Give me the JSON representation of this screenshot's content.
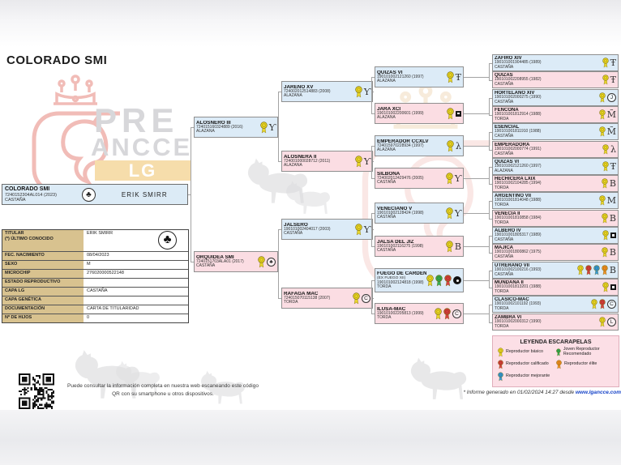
{
  "window": {
    "title": "COLORADO SMI"
  },
  "logo": {
    "pre": "PRE",
    "ancce": "ANCCE",
    "lg": "LG"
  },
  "subject": {
    "name": "COLORADO SMI",
    "code": "7240152304AL014 (2023)",
    "coat": "CASTAÑA",
    "owner": "ERIK SMIRR",
    "brand_icon": "clover-circle"
  },
  "info": {
    "rows": [
      {
        "label": "TITULAR",
        "sublabel": "(*) ÚLTIMO CONOCIDO",
        "value": "ERIK SMIRR"
      },
      {
        "label": "FEC. NACIMIENTO",
        "sublabel": "",
        "value": "08/04/2023"
      },
      {
        "label": "SEXO",
        "sublabel": "",
        "value": "M"
      },
      {
        "label": "MICROCHIP",
        "sublabel": "",
        "value": "276020000522148"
      },
      {
        "label": "ESTADO REPRODUCTIVO",
        "sublabel": "",
        "value": ""
      },
      {
        "label": "CAPA LG",
        "sublabel": "",
        "value": "CASTAÑA"
      },
      {
        "label": "CAPA GENÉTICA",
        "sublabel": "",
        "value": ""
      },
      {
        "label": "DOCUMENTACIÓN",
        "sublabel": "",
        "value": "CARTA DE TITULARIDAD"
      },
      {
        "label": "Nº DE HIJOS",
        "sublabel": "",
        "value": "0"
      }
    ]
  },
  "pedigree": {
    "gen2": [
      {
        "name": "ALOSNERO III",
        "code": "724015160324889 (2016)",
        "coat": "ALAZANA",
        "sex": "m",
        "rosettes": [
          "basico"
        ],
        "brand": {
          "type": "glyph",
          "glyph": "Ƴ"
        }
      },
      {
        "name": "ORQUIDEA SMI",
        "code": "7240151703ALA01 (2017)",
        "coat": "CASTAÑA",
        "sex": "f",
        "rosettes": [
          "basico"
        ],
        "brand": {
          "type": "circle",
          "glyph": "♣"
        }
      }
    ],
    "gen3": [
      {
        "name": "JAREÑO XV",
        "code": "724002012514883 (2008)",
        "coat": "ALAZANA",
        "sex": "m",
        "rosettes": [
          "basico"
        ],
        "brand": {
          "type": "glyph",
          "glyph": "Ƴ"
        }
      },
      {
        "name": "ALOSNERA II",
        "code": "724001000028712 (2011)",
        "coat": "ALAZANA",
        "sex": "f",
        "rosettes": [
          "basico"
        ],
        "brand": {
          "type": "glyph",
          "glyph": "Ƴ"
        }
      },
      {
        "name": "JALSERO",
        "code": "190101002404017 (2003)",
        "coat": "CASTAÑA",
        "sex": "m",
        "rosettes": [
          "basico"
        ],
        "brand": {
          "type": "glyph",
          "glyph": "Ƴ"
        }
      },
      {
        "name": "RAFAGA MAC",
        "code": "724015070115138 (2007)",
        "coat": "TORDA",
        "sex": "f",
        "rosettes": [
          "basico"
        ],
        "brand": {
          "type": "circle",
          "glyph": "C"
        }
      }
    ],
    "gen4": [
      {
        "name": "QUIZAS VI",
        "code": "190101002121260 (1997)",
        "coat": "ALAZANA",
        "sex": "m",
        "rosettes": [
          "basico"
        ],
        "brand": {
          "type": "glyph",
          "glyph": "Ŧ"
        }
      },
      {
        "name": "JARA XCI",
        "code": "190101002200601 (1999)",
        "coat": "ALAZANA",
        "sex": "f",
        "rosettes": [
          "basico"
        ],
        "brand": {
          "type": "square"
        }
      },
      {
        "name": "EMPERADOR CCXLV",
        "code": "724015970228934 (1997)",
        "coat": "ALAZANA",
        "sex": "m",
        "rosettes": [
          "basico"
        ],
        "brand": {
          "type": "glyph",
          "glyph": "λ"
        }
      },
      {
        "name": "SILBONA",
        "code": "724002012429476 (2005)",
        "coat": "CASTAÑA",
        "sex": "f",
        "rosettes": [
          "basico"
        ],
        "brand": {
          "type": "glyph",
          "glyph": "Ƴ"
        }
      },
      {
        "name": "VENECIANO V",
        "code": "190101002128424 (1998)",
        "coat": "CASTAÑA",
        "sex": "m",
        "rosettes": [
          "basico"
        ],
        "brand": {
          "type": "glyph",
          "glyph": "Ƴ"
        }
      },
      {
        "name": "JALSA DEL JIZ",
        "code": "190101002116275 (1998)",
        "coat": "CASTAÑA",
        "sex": "f",
        "rosettes": [
          "basico"
        ],
        "brand": {
          "type": "glyph",
          "glyph": "B"
        }
      },
      {
        "name": "FUEGO DE CARDENA",
        "alias": "(EX FUEGO XII)",
        "code": "190101002124818 (1998)",
        "coat": "TORDA",
        "sex": "m",
        "rosettes": [
          "basico",
          "recomendado",
          "calificado"
        ],
        "brand": {
          "type": "filled"
        }
      },
      {
        "name": "ILUSA-MAC",
        "code": "190101002205813 (1999)",
        "coat": "TORDA",
        "sex": "f",
        "rosettes": [
          "basico",
          "calificado"
        ],
        "brand": {
          "type": "circle",
          "glyph": "C"
        }
      }
    ],
    "gen5": [
      {
        "name": "ZAFIRO XIV",
        "code": "190101001904485 (1989)",
        "coat": "CASTAÑA",
        "sex": "m",
        "rosettes": [
          "basico"
        ],
        "brand": {
          "type": "glyph",
          "glyph": "Ŧ"
        }
      },
      {
        "name": "QUIZAS",
        "code": "190101002208955 (1982)",
        "coat": "CASTAÑA",
        "sex": "f",
        "rosettes": [
          "basico"
        ],
        "brand": {
          "type": "glyph",
          "glyph": "Ŧ"
        }
      },
      {
        "name": "HORTELANO XIV",
        "code": "190101002000275 (1990)",
        "coat": "CASTAÑA",
        "sex": "m",
        "rosettes": [
          "basico"
        ],
        "brand": {
          "type": "circle",
          "glyph": "J"
        }
      },
      {
        "name": "FENCONA",
        "code": "190101001812914 (1988)",
        "coat": "TORDA",
        "sex": "f",
        "rosettes": [
          "basico"
        ],
        "brand": {
          "type": "glyph",
          "glyph": "M̃"
        }
      },
      {
        "name": "ESENCIAL",
        "code": "190101001811910 (1988)",
        "coat": "CASTAÑA",
        "sex": "m",
        "rosettes": [
          "basico"
        ],
        "brand": {
          "type": "glyph",
          "glyph": "M̃"
        }
      },
      {
        "name": "EMPERADORA",
        "code": "190101002000774 (1991)",
        "coat": "CASTAÑA",
        "sex": "f",
        "rosettes": [
          "basico"
        ],
        "brand": {
          "type": "glyph",
          "glyph": "λ"
        }
      },
      {
        "name": "QUIZAS VI",
        "code": "190101002121260 (1997)",
        "coat": "ALAZANA",
        "sex": "m",
        "rosettes": [
          "basico"
        ],
        "brand": {
          "type": "glyph",
          "glyph": "Ŧ"
        }
      },
      {
        "name": "HECHICERA LXIX",
        "code": "190101002104285 (1994)",
        "coat": "TORDA",
        "sex": "f",
        "rosettes": [
          "basico"
        ],
        "brand": {
          "type": "glyph",
          "glyph": "B"
        }
      },
      {
        "name": "ARGENTINO VII",
        "code": "190101001814048 (1988)",
        "coat": "TORDA",
        "sex": "m",
        "rosettes": [
          "basico"
        ],
        "brand": {
          "type": "glyph",
          "glyph": "M"
        }
      },
      {
        "name": "VENECIA II",
        "code": "190101001810858 (1984)",
        "coat": "TORDA",
        "sex": "f",
        "rosettes": [
          "basico"
        ],
        "brand": {
          "type": "glyph",
          "glyph": "B"
        }
      },
      {
        "name": "ALBERO IV",
        "code": "190101001805317 (1989)",
        "coat": "CASTAÑA",
        "sex": "m",
        "rosettes": [
          "basico"
        ],
        "brand": {
          "type": "square"
        }
      },
      {
        "name": "MAJICA",
        "code": "190101001800862 (1975)",
        "coat": "CASTAÑA",
        "sex": "f",
        "rosettes": [
          "basico"
        ],
        "brand": {
          "type": "glyph",
          "glyph": "B"
        }
      },
      {
        "name": "UTRERANO VII",
        "code": "190101002100216 (1993)",
        "coat": "CASTAÑA",
        "sex": "m",
        "rosettes": [
          "basico",
          "calificado",
          "mejorante",
          "elite"
        ],
        "brand": {
          "type": "glyph",
          "glyph": "B"
        }
      },
      {
        "name": "MUNDANA II",
        "code": "190101001813201 (1988)",
        "coat": "TORDA",
        "sex": "f",
        "rosettes": [
          "basico"
        ],
        "brand": {
          "type": "square"
        }
      },
      {
        "name": "CLASICO-MAC",
        "code": "190101002101192 (1993)",
        "coat": "TORDA",
        "sex": "m",
        "rosettes": [
          "basico",
          "calificado"
        ],
        "brand": {
          "type": "circle",
          "glyph": "C"
        }
      },
      {
        "name": "ZAMBRA VI",
        "code": "190101002000312 (1990)",
        "coat": "TORDA",
        "sex": "f",
        "rosettes": [
          "basico"
        ],
        "brand": {
          "type": "circle",
          "glyph": "L"
        }
      }
    ]
  },
  "legend": {
    "title": "LEYENDA ESCARAPELAS",
    "items": [
      {
        "key": "basico",
        "label": "Reproductor básico"
      },
      {
        "key": "calificado",
        "label": "Reproductor calificado"
      },
      {
        "key": "mejorante",
        "label": "Reproductor mejorante"
      },
      {
        "key": "recomendado",
        "label": "Joven Reproductor Recomendado"
      },
      {
        "key": "elite",
        "label": "Reproductor élite"
      }
    ]
  },
  "qr": {
    "note": "Puede consultar la información completa en nuestra web escaneando este código QR con su smartphone u otros dispositivos."
  },
  "footer": {
    "prefix": "* Informe generado en 01/02/2024 14:27 desde ",
    "site": "www.lgancce.com"
  },
  "colors": {
    "male_box": "#dcebf7",
    "female_box": "#fbdde3",
    "label_column": "#d8c28f",
    "legend_bg": "#fcdfe6",
    "lg_block": "#f6ddab",
    "watermark_pink": "#f1bcb7",
    "rosettes": {
      "basico": "#e8d422",
      "calificado": "#d43a3a",
      "mejorante": "#2d96d8",
      "recomendado": "#2fa84e",
      "elite": "#ef8b1e"
    }
  }
}
